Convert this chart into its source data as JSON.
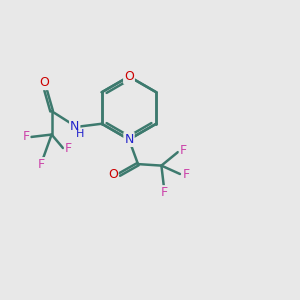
{
  "background_color": "#e8e8e8",
  "bond_color": "#3d7a6e",
  "O_color": "#cc0000",
  "N_color": "#2222cc",
  "F_color": "#cc44aa",
  "line_width": 1.8,
  "figsize": [
    3.0,
    3.0
  ],
  "dpi": 100,
  "xlim": [
    0,
    10
  ],
  "ylim": [
    0,
    10
  ]
}
